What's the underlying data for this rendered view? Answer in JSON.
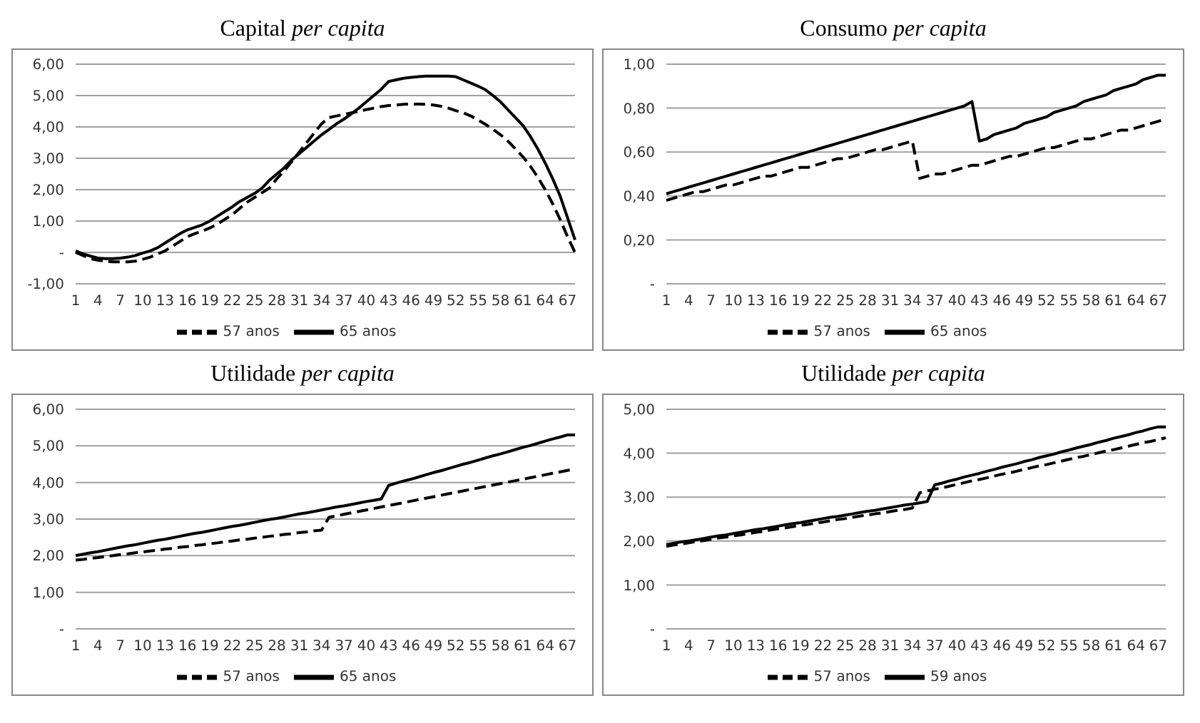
{
  "chart_data": [
    {
      "type": "line",
      "title": "Capital per capita",
      "categories": [
        "1",
        null,
        null,
        "4",
        null,
        null,
        "7",
        null,
        null,
        "10",
        null,
        null,
        "13",
        null,
        null,
        "16",
        null,
        null,
        "19",
        null,
        null,
        "22",
        null,
        null,
        "25",
        null,
        null,
        "28",
        null,
        null,
        "31",
        null,
        null,
        "34",
        null,
        null,
        "37",
        null,
        null,
        "40",
        null,
        null,
        "43",
        null,
        null,
        "46",
        null,
        null,
        "49",
        null,
        null,
        "52",
        null,
        null,
        "55",
        null,
        null,
        "58",
        null,
        null,
        "61",
        null,
        null,
        "64",
        null,
        null,
        "67",
        null
      ],
      "series": [
        {
          "name": "57 anos",
          "color": "#000000",
          "line_style": "dashed",
          "values": [
            0,
            -0.1,
            -0.2,
            -0.25,
            -0.28,
            -0.3,
            -0.3,
            -0.3,
            -0.28,
            -0.22,
            -0.15,
            -0.05,
            0.05,
            0.2,
            0.35,
            0.5,
            0.6,
            0.68,
            0.78,
            0.9,
            1.05,
            1.2,
            1.4,
            1.6,
            1.75,
            1.9,
            2.05,
            2.35,
            2.6,
            2.9,
            3.2,
            3.5,
            3.8,
            4.1,
            4.3,
            4.35,
            4.4,
            4.45,
            4.5,
            4.55,
            4.6,
            4.65,
            4.68,
            4.7,
            4.72,
            4.73,
            4.73,
            4.72,
            4.7,
            4.66,
            4.6,
            4.52,
            4.45,
            4.35,
            4.22,
            4.08,
            3.92,
            3.75,
            3.55,
            3.3,
            3.05,
            2.75,
            2.4,
            2.0,
            1.55,
            1.05,
            0.5,
            0
          ]
        },
        {
          "name": "65 anos",
          "color": "#000000",
          "line_style": "solid",
          "values": [
            0.05,
            -0.05,
            -0.12,
            -0.18,
            -0.2,
            -0.2,
            -0.18,
            -0.15,
            -0.1,
            -0.02,
            0.05,
            0.15,
            0.3,
            0.45,
            0.6,
            0.72,
            0.8,
            0.88,
            1.0,
            1.15,
            1.3,
            1.45,
            1.62,
            1.75,
            1.88,
            2.05,
            2.3,
            2.5,
            2.7,
            2.95,
            3.15,
            3.35,
            3.55,
            3.75,
            3.92,
            4.1,
            4.25,
            4.42,
            4.6,
            4.8,
            5.0,
            5.2,
            5.45,
            5.5,
            5.55,
            5.58,
            5.6,
            5.62,
            5.62,
            5.62,
            5.62,
            5.6,
            5.5,
            5.4,
            5.3,
            5.18,
            5.0,
            4.8,
            4.55,
            4.3,
            4.05,
            3.7,
            3.3,
            2.85,
            2.35,
            1.8,
            1.1,
            0.4
          ]
        }
      ],
      "ylim": [
        -1,
        6
      ],
      "yticks": [
        {
          "value": -1,
          "label": "-1,00"
        },
        {
          "value": 0,
          "label": "-"
        },
        {
          "value": 1,
          "label": "1,00"
        },
        {
          "value": 2,
          "label": "2,00"
        },
        {
          "value": 3,
          "label": "3,00"
        },
        {
          "value": 4,
          "label": "4,00"
        },
        {
          "value": 5,
          "label": "5,00"
        },
        {
          "value": 6,
          "label": "6,00"
        }
      ],
      "grid": "y",
      "legend": "bottom"
    },
    {
      "type": "line",
      "title": "Consumo per capita",
      "categories": [
        "1",
        null,
        null,
        "4",
        null,
        null,
        "7",
        null,
        null,
        "10",
        null,
        null,
        "13",
        null,
        null,
        "16",
        null,
        null,
        "19",
        null,
        null,
        "22",
        null,
        null,
        "25",
        null,
        null,
        "28",
        null,
        null,
        "31",
        null,
        null,
        "34",
        null,
        null,
        "37",
        null,
        null,
        "40",
        null,
        null,
        "43",
        null,
        null,
        "46",
        null,
        null,
        "49",
        null,
        null,
        "52",
        null,
        null,
        "55",
        null,
        null,
        "58",
        null,
        null,
        "61",
        null,
        null,
        "64",
        null,
        null,
        "67",
        null
      ],
      "series": [
        {
          "name": "57 anos",
          "color": "#000000",
          "line_style": "dashed",
          "values": [
            0.38,
            0.39,
            0.4,
            0.41,
            0.42,
            0.42,
            0.43,
            0.44,
            0.45,
            0.45,
            0.46,
            0.47,
            0.48,
            0.49,
            0.49,
            0.5,
            0.51,
            0.52,
            0.53,
            0.53,
            0.54,
            0.55,
            0.56,
            0.57,
            0.57,
            0.58,
            0.59,
            0.6,
            0.61,
            0.61,
            0.62,
            0.63,
            0.64,
            0.65,
            0.48,
            0.49,
            0.5,
            0.5,
            0.51,
            0.52,
            0.53,
            0.54,
            0.54,
            0.55,
            0.56,
            0.57,
            0.58,
            0.58,
            0.59,
            0.6,
            0.61,
            0.62,
            0.62,
            0.63,
            0.64,
            0.65,
            0.66,
            0.66,
            0.67,
            0.68,
            0.69,
            0.7,
            0.7,
            0.71,
            0.72,
            0.73,
            0.74,
            0.75
          ]
        },
        {
          "name": "65 anos",
          "color": "#000000",
          "line_style": "solid",
          "values": [
            0.41,
            0.42,
            0.43,
            0.44,
            0.45,
            0.46,
            0.47,
            0.48,
            0.49,
            0.5,
            0.51,
            0.52,
            0.53,
            0.54,
            0.55,
            0.56,
            0.57,
            0.58,
            0.59,
            0.6,
            0.61,
            0.62,
            0.63,
            0.64,
            0.65,
            0.66,
            0.67,
            0.68,
            0.69,
            0.7,
            0.71,
            0.72,
            0.73,
            0.74,
            0.75,
            0.76,
            0.77,
            0.78,
            0.79,
            0.8,
            0.81,
            0.83,
            0.65,
            0.66,
            0.68,
            0.69,
            0.7,
            0.71,
            0.73,
            0.74,
            0.75,
            0.76,
            0.78,
            0.79,
            0.8,
            0.81,
            0.83,
            0.84,
            0.85,
            0.86,
            0.88,
            0.89,
            0.9,
            0.91,
            0.93,
            0.94,
            0.95,
            0.95
          ]
        }
      ],
      "ylim": [
        0,
        1
      ],
      "yticks": [
        {
          "value": 0,
          "label": "-"
        },
        {
          "value": 0.2,
          "label": "0,20"
        },
        {
          "value": 0.4,
          "label": "0,40"
        },
        {
          "value": 0.6,
          "label": "0,60"
        },
        {
          "value": 0.8,
          "label": "0,80"
        },
        {
          "value": 1,
          "label": "1,00"
        }
      ],
      "grid": "y",
      "legend": "bottom"
    },
    {
      "type": "line",
      "title": "Utilidade per capita",
      "categories": [
        "1",
        null,
        null,
        "4",
        null,
        null,
        "7",
        null,
        null,
        "10",
        null,
        null,
        "13",
        null,
        null,
        "16",
        null,
        null,
        "19",
        null,
        null,
        "22",
        null,
        null,
        "25",
        null,
        null,
        "28",
        null,
        null,
        "31",
        null,
        null,
        "34",
        null,
        null,
        "37",
        null,
        null,
        "40",
        null,
        null,
        "43",
        null,
        null,
        "46",
        null,
        null,
        "49",
        null,
        null,
        "52",
        null,
        null,
        "55",
        null,
        null,
        "58",
        null,
        null,
        "61",
        null,
        null,
        "64",
        null,
        null,
        "67",
        null
      ],
      "series": [
        {
          "name": "57 anos",
          "color": "#000000",
          "line_style": "dashed",
          "values": [
            1.88,
            1.9,
            1.93,
            1.95,
            1.98,
            2.0,
            2.03,
            2.05,
            2.08,
            2.1,
            2.13,
            2.15,
            2.18,
            2.2,
            2.23,
            2.25,
            2.28,
            2.3,
            2.33,
            2.35,
            2.38,
            2.4,
            2.43,
            2.45,
            2.48,
            2.5,
            2.53,
            2.55,
            2.58,
            2.6,
            2.63,
            2.65,
            2.68,
            2.7,
            3.05,
            3.09,
            3.13,
            3.17,
            3.21,
            3.25,
            3.29,
            3.33,
            3.37,
            3.41,
            3.45,
            3.49,
            3.53,
            3.57,
            3.61,
            3.65,
            3.69,
            3.73,
            3.77,
            3.81,
            3.85,
            3.89,
            3.93,
            3.97,
            4.01,
            4.05,
            4.09,
            4.13,
            4.17,
            4.21,
            4.25,
            4.29,
            4.33,
            4.38
          ]
        },
        {
          "name": "65 anos",
          "color": "#000000",
          "line_style": "solid",
          "values": [
            2.0,
            2.04,
            2.08,
            2.11,
            2.15,
            2.19,
            2.23,
            2.27,
            2.3,
            2.34,
            2.38,
            2.42,
            2.45,
            2.49,
            2.53,
            2.57,
            2.61,
            2.64,
            2.68,
            2.72,
            2.76,
            2.8,
            2.83,
            2.87,
            2.91,
            2.95,
            2.99,
            3.02,
            3.06,
            3.1,
            3.14,
            3.17,
            3.21,
            3.25,
            3.29,
            3.33,
            3.36,
            3.4,
            3.44,
            3.48,
            3.51,
            3.55,
            3.92,
            3.98,
            4.04,
            4.09,
            4.15,
            4.21,
            4.27,
            4.32,
            4.38,
            4.44,
            4.5,
            4.55,
            4.61,
            4.67,
            4.73,
            4.78,
            4.84,
            4.9,
            4.96,
            5.01,
            5.07,
            5.13,
            5.19,
            5.24,
            5.3,
            5.3
          ]
        }
      ],
      "ylim": [
        0,
        6
      ],
      "yticks": [
        {
          "value": 0,
          "label": "-"
        },
        {
          "value": 1,
          "label": "1,00"
        },
        {
          "value": 2,
          "label": "2,00"
        },
        {
          "value": 3,
          "label": "3,00"
        },
        {
          "value": 4,
          "label": "4,00"
        },
        {
          "value": 5,
          "label": "5,00"
        },
        {
          "value": 6,
          "label": "6,00"
        }
      ],
      "grid": "y",
      "legend": "bottom"
    },
    {
      "type": "line",
      "title": "Utilidade per capita",
      "categories": [
        "1",
        null,
        null,
        "4",
        null,
        null,
        "7",
        null,
        null,
        "10",
        null,
        null,
        "13",
        null,
        null,
        "16",
        null,
        null,
        "19",
        null,
        null,
        "22",
        null,
        null,
        "25",
        null,
        null,
        "28",
        null,
        null,
        "31",
        null,
        null,
        "34",
        null,
        null,
        "37",
        null,
        null,
        "40",
        null,
        null,
        "43",
        null,
        null,
        "46",
        null,
        null,
        "49",
        null,
        null,
        "52",
        null,
        null,
        "55",
        null,
        null,
        "58",
        null,
        null,
        "61",
        null,
        null,
        "64",
        null,
        null,
        "67",
        null
      ],
      "series": [
        {
          "name": "57 anos",
          "color": "#000000",
          "line_style": "dashed",
          "values": [
            1.88,
            1.91,
            1.93,
            1.96,
            1.99,
            2.01,
            2.04,
            2.07,
            2.09,
            2.12,
            2.14,
            2.17,
            2.2,
            2.22,
            2.25,
            2.28,
            2.3,
            2.33,
            2.36,
            2.38,
            2.41,
            2.43,
            2.46,
            2.49,
            2.51,
            2.54,
            2.57,
            2.59,
            2.62,
            2.64,
            2.67,
            2.7,
            2.72,
            2.75,
            3.1,
            3.14,
            3.18,
            3.21,
            3.25,
            3.29,
            3.33,
            3.37,
            3.4,
            3.44,
            3.48,
            3.52,
            3.55,
            3.59,
            3.63,
            3.67,
            3.71,
            3.74,
            3.78,
            3.82,
            3.86,
            3.9,
            3.93,
            3.97,
            4.01,
            4.05,
            4.08,
            4.12,
            4.16,
            4.2,
            4.24,
            4.27,
            4.31,
            4.35
          ]
        },
        {
          "name": "59 anos",
          "color": "#000000",
          "line_style": "solid",
          "values": [
            1.92,
            1.95,
            1.98,
            2.0,
            2.03,
            2.06,
            2.09,
            2.12,
            2.14,
            2.17,
            2.2,
            2.23,
            2.26,
            2.28,
            2.31,
            2.34,
            2.37,
            2.4,
            2.42,
            2.45,
            2.48,
            2.51,
            2.54,
            2.56,
            2.59,
            2.62,
            2.65,
            2.68,
            2.7,
            2.73,
            2.76,
            2.79,
            2.82,
            2.84,
            2.87,
            2.9,
            3.28,
            3.32,
            3.37,
            3.41,
            3.46,
            3.5,
            3.54,
            3.59,
            3.63,
            3.68,
            3.72,
            3.76,
            3.81,
            3.85,
            3.9,
            3.94,
            3.98,
            4.03,
            4.07,
            4.12,
            4.16,
            4.2,
            4.25,
            4.29,
            4.34,
            4.38,
            4.42,
            4.47,
            4.51,
            4.56,
            4.6,
            4.6
          ]
        }
      ],
      "ylim": [
        0,
        5
      ],
      "yticks": [
        {
          "value": 0,
          "label": "-"
        },
        {
          "value": 1,
          "label": "1,00"
        },
        {
          "value": 2,
          "label": "2,00"
        },
        {
          "value": 3,
          "label": "3,00"
        },
        {
          "value": 4,
          "label": "4,00"
        },
        {
          "value": 5,
          "label": "5,00"
        }
      ],
      "grid": "y",
      "legend": "bottom"
    }
  ]
}
